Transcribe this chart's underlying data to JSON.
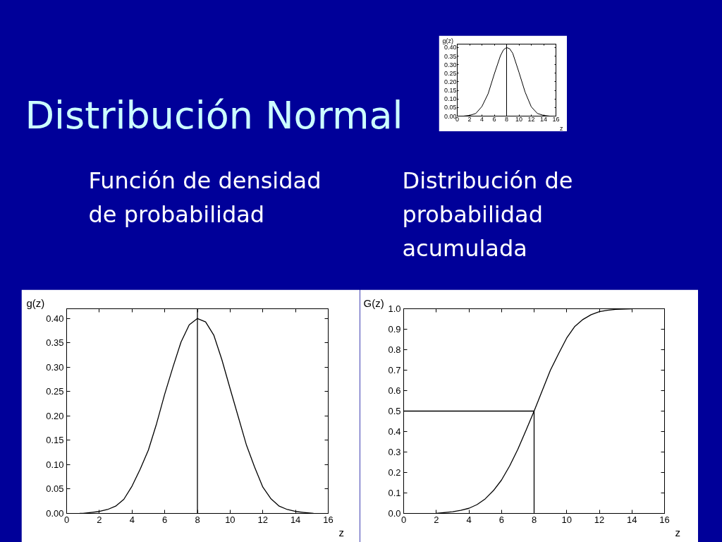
{
  "chart_data": [
    {
      "type": "other",
      "title": "Distribución Normal"
    },
    {
      "type": "line",
      "xlabel": "z",
      "ylabel": "g(z)",
      "x": [
        1,
        2,
        3,
        4,
        5,
        6,
        7,
        7.5,
        8,
        8.5,
        9,
        10,
        11,
        12,
        13,
        14,
        15
      ],
      "series": [
        {
          "color": "#000000",
          "values": [
            0.0,
            0.004,
            0.015,
            0.056,
            0.13,
            0.245,
            0.352,
            0.387,
            0.4,
            0.393,
            0.366,
            0.256,
            0.14,
            0.054,
            0.015,
            0.004,
            0.0
          ]
        }
      ],
      "xlim": [
        0,
        16
      ],
      "xticks": [
        0,
        2,
        4,
        6,
        8,
        10,
        12,
        14,
        16
      ],
      "ylim": [
        0,
        0.42
      ],
      "yticks": [
        {
          "value": 0,
          "label": "0.00"
        },
        {
          "value": 0.05,
          "label": "0.05"
        },
        {
          "value": 0.1,
          "label": "0.10"
        },
        {
          "value": 0.15,
          "label": "0.15"
        },
        {
          "value": 0.2,
          "label": "0.20"
        },
        {
          "value": 0.25,
          "label": "0.25"
        },
        {
          "value": 0.3,
          "label": "0.30"
        },
        {
          "value": 0.35,
          "label": "0.35"
        },
        {
          "value": 0.4,
          "label": "0.40"
        }
      ],
      "ref_lines": [
        {
          "axis": "x",
          "value": 8,
          "color": "#000000"
        }
      ]
    },
    {
      "type": "line",
      "title": "Función de densidad de probabilidad",
      "xlabel": "z",
      "ylabel": "g(z)",
      "x": [
        0.8,
        1,
        1.5,
        2,
        2.5,
        3,
        3.5,
        4,
        4.5,
        5,
        5.5,
        6,
        6.5,
        7,
        7.5,
        8,
        8.5,
        9,
        9.5,
        10,
        10.5,
        11,
        11.5,
        12,
        12.5,
        13,
        13.5,
        14,
        14.5,
        15.1
      ],
      "series": [
        {
          "color": "#000000",
          "values": [
            0.0,
            0.0,
            0.002,
            0.004,
            0.008,
            0.015,
            0.029,
            0.056,
            0.091,
            0.13,
            0.184,
            0.245,
            0.3,
            0.352,
            0.387,
            0.4,
            0.393,
            0.366,
            0.315,
            0.256,
            0.198,
            0.14,
            0.095,
            0.054,
            0.03,
            0.015,
            0.008,
            0.004,
            0.002,
            0.0
          ]
        }
      ],
      "xlim": [
        0,
        16
      ],
      "xticks": [
        0,
        2,
        4,
        6,
        8,
        10,
        12,
        14,
        16
      ],
      "ylim": [
        0,
        0.42
      ],
      "yticks": [
        {
          "value": 0,
          "label": "0.00"
        },
        {
          "value": 0.05,
          "label": "0.05"
        },
        {
          "value": 0.1,
          "label": "0.10"
        },
        {
          "value": 0.15,
          "label": "0.15"
        },
        {
          "value": 0.2,
          "label": "0.20"
        },
        {
          "value": 0.25,
          "label": "0.25"
        },
        {
          "value": 0.3,
          "label": "0.30"
        },
        {
          "value": 0.35,
          "label": "0.35"
        },
        {
          "value": 0.4,
          "label": "0.40"
        }
      ],
      "ref_lines": [
        {
          "axis": "x",
          "value": 8,
          "color": "#000000"
        }
      ]
    },
    {
      "type": "line",
      "title": "Distribución de probabilidad acumulada",
      "xlabel": "z",
      "ylabel": "G(z)",
      "series": [
        {
          "color": "#000000",
          "x": [
            2,
            3,
            3.5,
            4,
            4.5,
            5,
            5.5,
            6,
            6.5,
            7,
            7.5,
            8,
            8.5,
            9,
            9.5,
            10,
            10.5,
            11,
            11.5,
            12,
            12.5,
            13,
            14
          ],
          "values": [
            0.0,
            0.008,
            0.015,
            0.025,
            0.043,
            0.071,
            0.111,
            0.163,
            0.232,
            0.313,
            0.405,
            0.5,
            0.6,
            0.7,
            0.78,
            0.857,
            0.914,
            0.948,
            0.971,
            0.986,
            0.993,
            0.997,
            1.0
          ]
        },
        {
          "color": "#000000",
          "x": [
            0,
            8,
            8
          ],
          "values": [
            0.5,
            0.5,
            0
          ]
        }
      ],
      "xlim": [
        0,
        16
      ],
      "xticks": [
        0,
        2,
        4,
        6,
        8,
        10,
        12,
        14,
        16
      ],
      "ylim": [
        0,
        1
      ],
      "yticks": [
        {
          "value": 0,
          "label": "0.0"
        },
        {
          "value": 0.1,
          "label": "0.1"
        },
        {
          "value": 0.2,
          "label": "0.2"
        },
        {
          "value": 0.3,
          "label": "0.3"
        },
        {
          "value": 0.4,
          "label": "0.4"
        },
        {
          "value": 0.5,
          "label": "0.5"
        },
        {
          "value": 0.6,
          "label": "0.6"
        },
        {
          "value": 0.7,
          "label": "0.7"
        },
        {
          "value": 0.8,
          "label": "0.8"
        },
        {
          "value": 0.9,
          "label": "0.9"
        },
        {
          "value": 1,
          "label": "1.0"
        }
      ]
    }
  ]
}
